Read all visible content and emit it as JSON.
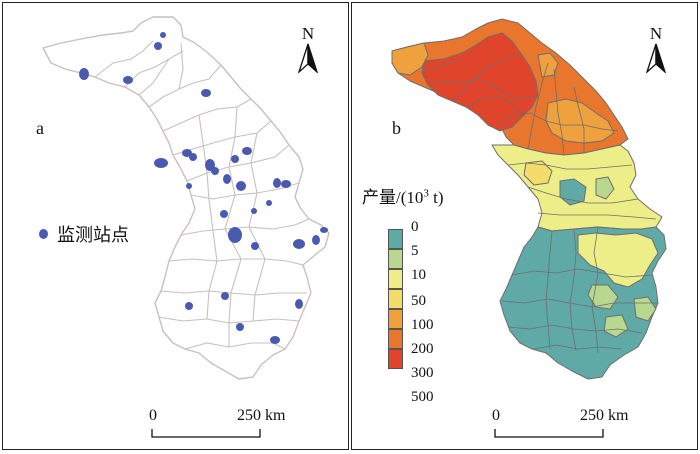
{
  "panel_a": {
    "letter": "a",
    "legend_label": "监测站点",
    "north_label": "N",
    "scale": {
      "start": "0",
      "end": "250 km"
    }
  },
  "panel_b": {
    "letter": "b",
    "legend_title": "产量/(10",
    "legend_title_sup": "3",
    "legend_title_tail": " t)",
    "north_label": "N",
    "scale": {
      "start": "0",
      "end": "250 km"
    },
    "classes": [
      {
        "label": "0",
        "color": "#5fa9a6"
      },
      {
        "label": "5",
        "color": "#b7d88e"
      },
      {
        "label": "10",
        "color": "#eeee88"
      },
      {
        "label": "50",
        "color": "#f3dc6a"
      },
      {
        "label": "100",
        "color": "#efa13e"
      },
      {
        "label": "200",
        "color": "#e8762d"
      },
      {
        "label": "300",
        "color": "#e0442a"
      },
      {
        "label": "500",
        "color": ""
      }
    ]
  },
  "colors": {
    "station_dot": "#4a5ab0",
    "boundary_a": "#c9bfc0",
    "boundary_b": "#6e6e6e"
  }
}
